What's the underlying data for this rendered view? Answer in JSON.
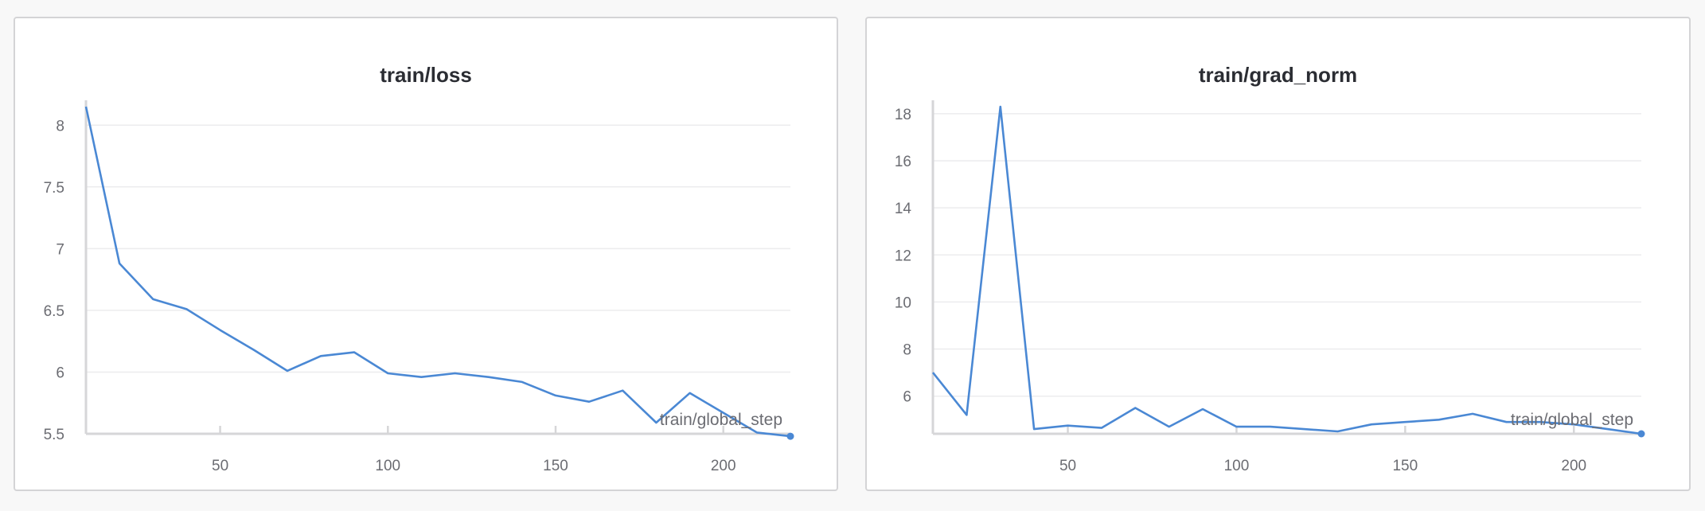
{
  "chart_data": [
    {
      "type": "line",
      "title": "train/loss",
      "xlabel": "train/global_step",
      "ylabel": "",
      "xlim": [
        10,
        220
      ],
      "ylim": [
        5.5,
        8.15
      ],
      "xticks": [
        50,
        100,
        150,
        200
      ],
      "yticks": [
        5.5,
        6,
        6.5,
        7,
        7.5,
        8
      ],
      "ytick_labels": [
        "5.5",
        "6",
        "6.5",
        "7",
        "7.5",
        "8"
      ],
      "grid": true,
      "line_color": "#4a88d4",
      "x": [
        10,
        20,
        30,
        40,
        50,
        60,
        70,
        80,
        90,
        100,
        110,
        120,
        130,
        140,
        150,
        160,
        170,
        180,
        190,
        200,
        210,
        220
      ],
      "series": [
        {
          "values": [
            8.15,
            6.88,
            6.59,
            6.51,
            6.34,
            6.18,
            6.01,
            6.13,
            6.16,
            5.99,
            5.96,
            5.99,
            5.96,
            5.92,
            5.81,
            5.76,
            5.85,
            5.59,
            5.83,
            5.67,
            5.51,
            5.48
          ]
        }
      ]
    },
    {
      "type": "line",
      "title": "train/grad_norm",
      "xlabel": "train/global_step",
      "ylabel": "",
      "xlim": [
        10,
        220
      ],
      "ylim": [
        4.4,
        18.3
      ],
      "xticks": [
        50,
        100,
        150,
        200
      ],
      "yticks": [
        6,
        8,
        10,
        12,
        14,
        16,
        18
      ],
      "ytick_labels": [
        "6",
        "8",
        "10",
        "12",
        "14",
        "16",
        "18"
      ],
      "grid": true,
      "line_color": "#4a88d4",
      "x": [
        10,
        20,
        30,
        40,
        50,
        60,
        70,
        80,
        90,
        100,
        110,
        120,
        130,
        140,
        150,
        160,
        170,
        180,
        190,
        200,
        210,
        220
      ],
      "series": [
        {
          "values": [
            7.0,
            5.2,
            18.3,
            4.6,
            4.75,
            4.65,
            5.5,
            4.7,
            5.45,
            4.7,
            4.7,
            4.6,
            4.5,
            4.8,
            4.9,
            5.0,
            5.25,
            4.9,
            4.9,
            4.8,
            4.6,
            4.4
          ]
        }
      ]
    }
  ]
}
